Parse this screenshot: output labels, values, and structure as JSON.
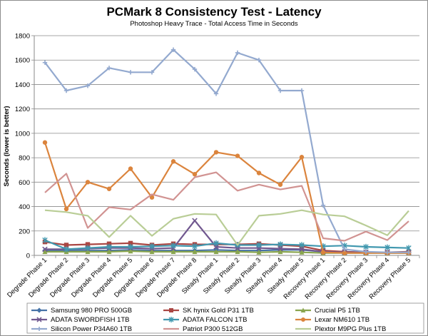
{
  "chart_data": {
    "type": "line",
    "title": "PCMark 8 Consistency Test - Latency",
    "subtitle": "Photoshop Heavy Trace - Total Access Time in Seconds",
    "ylabel": "Seconds (lower is better)",
    "xlabel": "",
    "ylim": [
      0,
      1800
    ],
    "yticks": [
      0,
      200,
      400,
      600,
      800,
      1000,
      1200,
      1400,
      1600,
      1800
    ],
    "grid": true,
    "legend_position": "bottom",
    "categories": [
      "Degrade Phase 1",
      "Degrade Phase 2",
      "Degrade Phase 3",
      "Degrade Phase 4",
      "Degrade Phase 5",
      "Degrade Phase 6",
      "Degrade Phase 7",
      "Degrade Phase 8",
      "Steady Phase 1",
      "Steady Phase 2",
      "Steady Phase 3",
      "Steady Phase 4",
      "Steady Phase 5",
      "Recovery Phase 1",
      "Recovery Phase 2",
      "Recovery Phase 3",
      "Recovery Phase 4",
      "Recovery Phase 5"
    ],
    "series": [
      {
        "name": "Samsung 980 PRO 500GB",
        "color": "#4572a7",
        "marker": "diamond",
        "values": [
          40,
          40,
          40,
          40,
          45,
          40,
          40,
          40,
          45,
          40,
          40,
          45,
          45,
          30,
          25,
          25,
          25,
          25
        ]
      },
      {
        "name": "SK hynix Gold P31 1TB",
        "color": "#aa4643",
        "marker": "square",
        "values": [
          110,
          85,
          90,
          95,
          100,
          85,
          95,
          90,
          90,
          90,
          95,
          85,
          75,
          40,
          30,
          25,
          25,
          30
        ]
      },
      {
        "name": "Crucial P5 1TB",
        "color": "#89a54e",
        "marker": "triangle",
        "values": [
          30,
          30,
          30,
          30,
          35,
          30,
          30,
          30,
          30,
          30,
          25,
          30,
          25,
          20,
          20,
          20,
          20,
          20
        ]
      },
      {
        "name": "ADATA SWORDFISH 1TB",
        "color": "#71588f",
        "marker": "x",
        "values": [
          50,
          50,
          55,
          60,
          60,
          55,
          60,
          285,
          70,
          60,
          60,
          55,
          50,
          30,
          25,
          25,
          25,
          25
        ]
      },
      {
        "name": "ADATA FALCON 1TB",
        "color": "#4198af",
        "marker": "star",
        "values": [
          125,
          50,
          60,
          70,
          70,
          75,
          80,
          75,
          100,
          85,
          85,
          90,
          85,
          75,
          80,
          70,
          65,
          60
        ]
      },
      {
        "name": "Lexar NM610 1TB",
        "color": "#db843d",
        "marker": "circle",
        "values": [
          925,
          380,
          600,
          545,
          710,
          475,
          770,
          665,
          845,
          815,
          675,
          580,
          805,
          25,
          20,
          20,
          20,
          20
        ]
      },
      {
        "name": "Silicon Power P34A60 1TB",
        "color": "#93a9cf",
        "marker": "plus",
        "values": [
          1580,
          1350,
          1390,
          1535,
          1500,
          1500,
          1685,
          1525,
          1325,
          1660,
          1600,
          1350,
          1350,
          410,
          50,
          30,
          25,
          25
        ]
      },
      {
        "name": "Patriot P300 512GB",
        "color": "#d19392",
        "marker": "none",
        "values": [
          515,
          670,
          225,
          395,
          375,
          500,
          455,
          640,
          680,
          530,
          580,
          540,
          570,
          140,
          120,
          195,
          125,
          280
        ]
      },
      {
        "name": "Plextor M9PG Plus 1TB",
        "color": "#b9cd96",
        "marker": "none",
        "values": [
          370,
          355,
          325,
          150,
          325,
          160,
          300,
          340,
          335,
          85,
          325,
          340,
          370,
          335,
          320,
          245,
          165,
          365
        ]
      }
    ]
  }
}
